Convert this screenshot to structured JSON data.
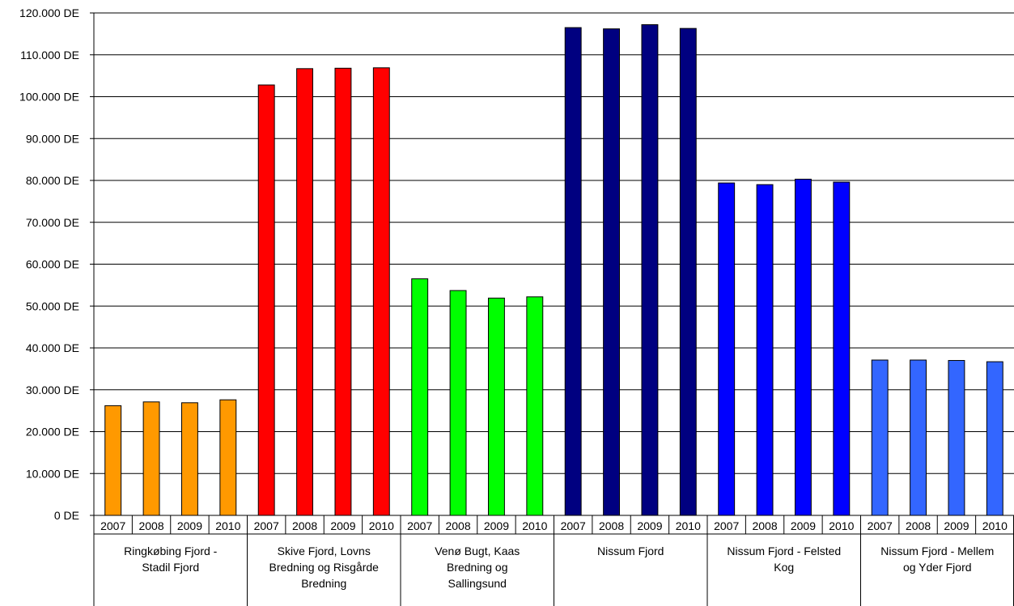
{
  "chart_data": {
    "type": "bar",
    "ylim": [
      0,
      120000
    ],
    "y_tick_step": 10000,
    "y_tick_labels": [
      "0 DE",
      "10.000 DE",
      "20.000 DE",
      "30.000 DE",
      "40.000 DE",
      "50.000 DE",
      "60.000 DE",
      "70.000 DE",
      "80.000 DE",
      "90.000 DE",
      "100.000 DE",
      "110.000 DE",
      "120.000 DE"
    ],
    "grid": true,
    "legend": "none",
    "years": [
      "2007",
      "2008",
      "2009",
      "2010"
    ],
    "groups": [
      {
        "lines": [
          "Ringkøbing Fjord -",
          "Stadil Fjord"
        ],
        "color": "#ff9900",
        "values": [
          26200,
          27100,
          26900,
          27600
        ]
      },
      {
        "lines": [
          "Skive Fjord, Lovns",
          "Bredning og Risgårde",
          "Bredning"
        ],
        "color": "#ff0000",
        "values": [
          102800,
          106700,
          106800,
          106900
        ]
      },
      {
        "lines": [
          "Venø Bugt, Kaas",
          "Bredning og",
          "Sallingsund"
        ],
        "color": "#00ff00",
        "values": [
          56500,
          53700,
          51900,
          52200
        ]
      },
      {
        "lines": [
          "Nissum Fjord"
        ],
        "color": "#000080",
        "values": [
          116500,
          116200,
          117200,
          116300
        ]
      },
      {
        "lines": [
          "Nissum Fjord - Felsted",
          "Kog"
        ],
        "color": "#0000ff",
        "values": [
          79400,
          79000,
          80300,
          79600
        ]
      },
      {
        "lines": [
          "Nissum Fjord - Mellem",
          "og Yder Fjord"
        ],
        "color": "#3366ff",
        "values": [
          37100,
          37100,
          37000,
          36700
        ]
      }
    ]
  }
}
